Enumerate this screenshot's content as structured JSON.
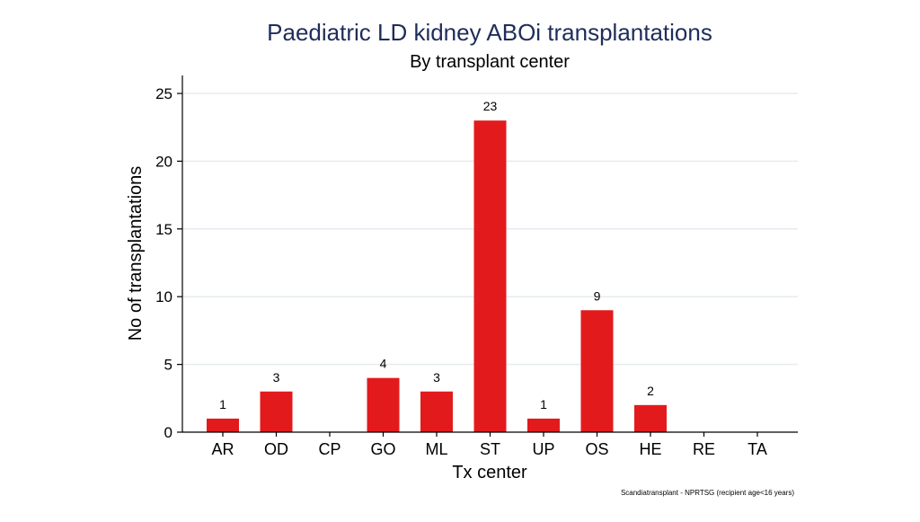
{
  "chart_data": {
    "type": "bar",
    "title": "Paediatric LD kidney ABOi transplantations",
    "subtitle": "By transplant center",
    "xlabel": "Tx center",
    "ylabel": "No of transplantations",
    "categories": [
      "AR",
      "OD",
      "CP",
      "GO",
      "ML",
      "ST",
      "UP",
      "OS",
      "HE",
      "RE",
      "TA"
    ],
    "values": [
      1,
      3,
      0,
      4,
      3,
      23,
      1,
      9,
      2,
      0,
      0
    ],
    "data_labels": [
      "1",
      "3",
      "",
      "4",
      "3",
      "23",
      "1",
      "9",
      "2",
      "",
      ""
    ],
    "ylim": [
      0,
      25
    ],
    "yticks": [
      0,
      5,
      10,
      15,
      20,
      25
    ],
    "grid": true,
    "legend": "none",
    "bar_color": "#e31a1c",
    "title_color": "#1f2d5a",
    "footnote": "Scandiatransplant - NPRTSG (recipient age<16 years)"
  }
}
